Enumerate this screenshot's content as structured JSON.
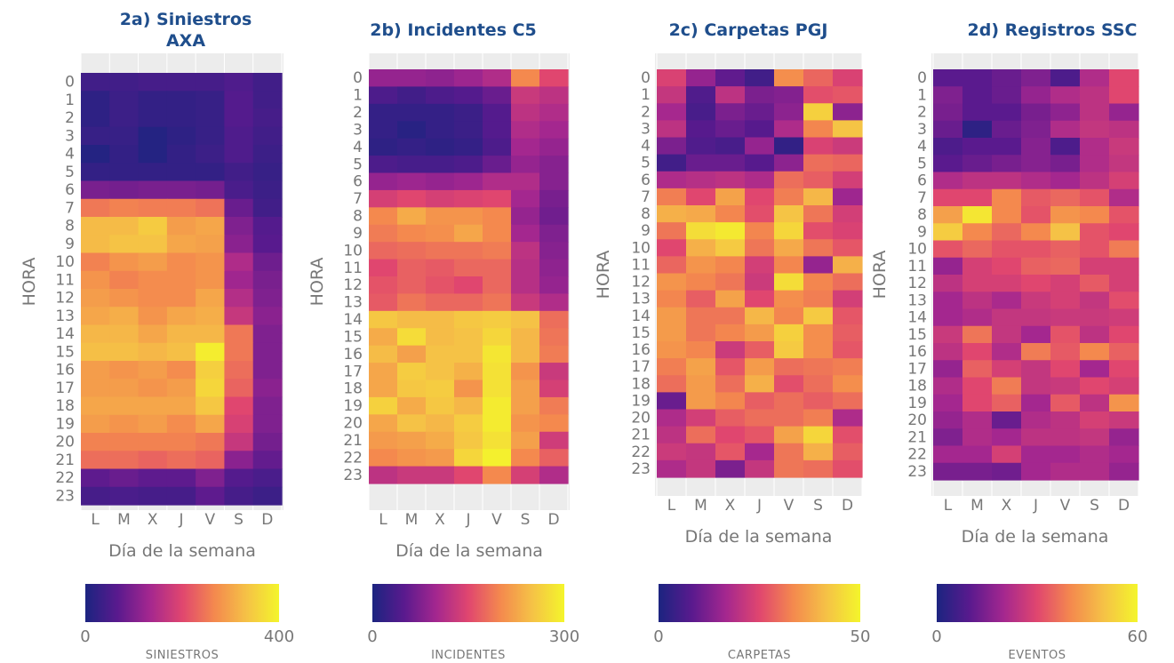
{
  "colors": {
    "title": "#1f4e8c",
    "scale": [
      "#1b2480",
      "#5a1a8e",
      "#a4278f",
      "#e0466f",
      "#f4894e",
      "#f5c246",
      "#f4f52b"
    ],
    "grid_bg": "#ececec",
    "text": "#777777"
  },
  "chart_data": [
    {
      "type": "heatmap",
      "title_lines": [
        "2a) Siniestros",
        "AXA"
      ],
      "xlabel": "Día de la semana",
      "ylabel": "HORA",
      "x": [
        "L",
        "M",
        "X",
        "J",
        "V",
        "S",
        "D"
      ],
      "y": [
        "0",
        "1",
        "2",
        "3",
        "4",
        "5",
        "6",
        "7",
        "8",
        "9",
        "10",
        "11",
        "12",
        "13",
        "14",
        "15",
        "16",
        "17",
        "18",
        "19",
        "20",
        "21",
        "22",
        "23"
      ],
      "legend": {
        "title": "SINIESTROS",
        "min": 0,
        "max": 400,
        "min_label": "0",
        "max_label": "400"
      },
      "values": [
        [
          40,
          40,
          45,
          45,
          45,
          55,
          40
        ],
        [
          20,
          35,
          25,
          25,
          30,
          60,
          40
        ],
        [
          20,
          35,
          25,
          25,
          30,
          60,
          45
        ],
        [
          30,
          30,
          10,
          20,
          30,
          55,
          40
        ],
        [
          10,
          25,
          10,
          25,
          35,
          55,
          35
        ],
        [
          25,
          25,
          25,
          25,
          25,
          40,
          30
        ],
        [
          95,
          90,
          95,
          95,
          90,
          50,
          35
        ],
        [
          250,
          260,
          255,
          255,
          245,
          80,
          40
        ],
        [
          325,
          325,
          345,
          290,
          300,
          100,
          60
        ],
        [
          325,
          335,
          335,
          300,
          295,
          110,
          65
        ],
        [
          260,
          280,
          290,
          270,
          280,
          145,
          85
        ],
        [
          280,
          260,
          270,
          270,
          280,
          130,
          95
        ],
        [
          290,
          280,
          270,
          270,
          300,
          150,
          100
        ],
        [
          300,
          310,
          280,
          300,
          310,
          170,
          110
        ],
        [
          320,
          320,
          300,
          320,
          320,
          250,
          100
        ],
        [
          330,
          330,
          320,
          330,
          390,
          250,
          100
        ],
        [
          290,
          280,
          290,
          270,
          350,
          240,
          100
        ],
        [
          290,
          290,
          280,
          290,
          360,
          230,
          110
        ],
        [
          300,
          300,
          300,
          300,
          340,
          200,
          100
        ],
        [
          290,
          280,
          290,
          270,
          300,
          190,
          100
        ],
        [
          260,
          260,
          260,
          260,
          250,
          170,
          90
        ],
        [
          240,
          240,
          230,
          240,
          230,
          110,
          75
        ],
        [
          70,
          80,
          70,
          70,
          100,
          60,
          50
        ],
        [
          45,
          50,
          45,
          45,
          70,
          45,
          35
        ]
      ]
    },
    {
      "type": "heatmap",
      "title_lines": [
        "2b) Incidentes C5"
      ],
      "xlabel": "Día de la semana",
      "ylabel": "HORA",
      "x": [
        "L",
        "M",
        "X",
        "J",
        "V",
        "S",
        "D"
      ],
      "y": [
        "0",
        "1",
        "2",
        "3",
        "4",
        "5",
        "6",
        "7",
        "8",
        "9",
        "10",
        "11",
        "12",
        "13",
        "14",
        "15",
        "16",
        "17",
        "18",
        "19",
        "20",
        "21",
        "22",
        "23"
      ],
      "legend": {
        "title": "INCIDENTES",
        "min": 0,
        "max": 300,
        "min_label": "0",
        "max_label": "300"
      },
      "values": [
        [
          90,
          90,
          85,
          95,
          110,
          200,
          150
        ],
        [
          40,
          30,
          40,
          45,
          60,
          130,
          120
        ],
        [
          20,
          20,
          20,
          25,
          45,
          120,
          110
        ],
        [
          20,
          10,
          20,
          25,
          45,
          110,
          100
        ],
        [
          15,
          20,
          15,
          20,
          40,
          100,
          90
        ],
        [
          40,
          35,
          35,
          40,
          60,
          90,
          80
        ],
        [
          90,
          95,
          90,
          95,
          110,
          110,
          80
        ],
        [
          140,
          150,
          140,
          145,
          150,
          100,
          70
        ],
        [
          200,
          230,
          210,
          210,
          200,
          90,
          65
        ],
        [
          190,
          200,
          205,
          225,
          200,
          100,
          75
        ],
        [
          175,
          180,
          185,
          185,
          190,
          120,
          80
        ],
        [
          150,
          170,
          165,
          175,
          175,
          115,
          85
        ],
        [
          160,
          170,
          160,
          150,
          175,
          115,
          90
        ],
        [
          165,
          185,
          175,
          175,
          185,
          130,
          110
        ],
        [
          255,
          245,
          245,
          255,
          260,
          250,
          180
        ],
        [
          230,
          275,
          245,
          250,
          270,
          240,
          185
        ],
        [
          245,
          220,
          250,
          250,
          285,
          240,
          190
        ],
        [
          225,
          260,
          250,
          235,
          280,
          210,
          130
        ],
        [
          225,
          255,
          260,
          210,
          280,
          220,
          140
        ],
        [
          265,
          230,
          255,
          240,
          290,
          220,
          190
        ],
        [
          225,
          250,
          240,
          260,
          290,
          210,
          200
        ],
        [
          215,
          220,
          230,
          255,
          280,
          220,
          135
        ],
        [
          200,
          210,
          215,
          270,
          295,
          200,
          170
        ],
        [
          120,
          130,
          130,
          150,
          200,
          140,
          110
        ]
      ]
    },
    {
      "type": "heatmap",
      "title_lines": [
        "2c) Carpetas PGJ"
      ],
      "xlabel": "Día de la semana",
      "ylabel": "HORA",
      "x": [
        "L",
        "M",
        "X",
        "J",
        "V",
        "S",
        "D"
      ],
      "y": [
        "0",
        "1",
        "2",
        "3",
        "4",
        "5",
        "6",
        "7",
        "8",
        "9",
        "10",
        "11",
        "12",
        "13",
        "14",
        "15",
        "16",
        "17",
        "18",
        "19",
        "20",
        "21",
        "22",
        "23"
      ],
      "legend": {
        "title": "CARPETAS",
        "min": 0,
        "max": 50,
        "min_label": "0",
        "max_label": "50"
      },
      "values": [
        [
          24,
          15,
          9,
          5,
          34,
          29,
          24
        ],
        [
          21,
          7,
          20,
          12,
          13,
          26,
          27
        ],
        [
          17,
          6,
          12,
          10,
          14,
          44,
          14
        ],
        [
          20,
          8,
          10,
          8,
          18,
          33,
          42
        ],
        [
          12,
          7,
          6,
          15,
          3,
          24,
          22
        ],
        [
          5,
          10,
          10,
          8,
          14,
          30,
          29
        ],
        [
          18,
          19,
          20,
          18,
          30,
          28,
          23
        ],
        [
          32,
          25,
          37,
          25,
          32,
          40,
          16
        ],
        [
          39,
          38,
          33,
          26,
          42,
          31,
          23
        ],
        [
          31,
          46,
          48,
          33,
          45,
          26,
          24
        ],
        [
          25,
          39,
          43,
          31,
          38,
          31,
          27
        ],
        [
          29,
          35,
          33,
          23,
          33,
          15,
          39
        ],
        [
          35,
          33,
          31,
          22,
          46,
          33,
          30
        ],
        [
          33,
          28,
          37,
          25,
          34,
          32,
          23
        ],
        [
          36,
          31,
          31,
          40,
          33,
          43,
          27
        ],
        [
          36,
          31,
          33,
          36,
          44,
          34,
          28
        ],
        [
          35,
          33,
          22,
          28,
          43,
          34,
          27
        ],
        [
          32,
          37,
          27,
          36,
          30,
          31,
          32
        ],
        [
          30,
          36,
          30,
          39,
          26,
          30,
          34
        ],
        [
          10,
          36,
          33,
          28,
          30,
          28,
          30
        ],
        [
          18,
          23,
          28,
          30,
          30,
          32,
          18
        ],
        [
          20,
          30,
          25,
          27,
          37,
          45,
          26
        ],
        [
          22,
          21,
          27,
          17,
          31,
          39,
          28
        ],
        [
          18,
          21,
          12,
          21,
          31,
          30,
          26
        ]
      ]
    },
    {
      "type": "heatmap",
      "title_lines": [
        "2d) Registros SSC"
      ],
      "xlabel": "Día de la semana",
      "ylabel": "HORA",
      "x": [
        "L",
        "M",
        "X",
        "J",
        "V",
        "S",
        "D"
      ],
      "y": [
        "0",
        "1",
        "2",
        "3",
        "4",
        "5",
        "6",
        "7",
        "8",
        "9",
        "10",
        "11",
        "12",
        "13",
        "14",
        "15",
        "16",
        "17",
        "18",
        "19",
        "20",
        "21",
        "22",
        "23"
      ],
      "legend": {
        "title": "EVENTOS",
        "min": 0,
        "max": 60,
        "min_label": "0",
        "max_label": "60"
      },
      "values": [
        [
          10,
          10,
          12,
          15,
          8,
          22,
          30
        ],
        [
          15,
          10,
          12,
          18,
          22,
          24,
          30
        ],
        [
          14,
          10,
          10,
          14,
          17,
          24,
          18
        ],
        [
          12,
          3,
          12,
          15,
          22,
          25,
          24
        ],
        [
          8,
          10,
          10,
          16,
          8,
          22,
          26
        ],
        [
          10,
          12,
          14,
          16,
          14,
          22,
          25
        ],
        [
          22,
          24,
          24,
          22,
          20,
          24,
          28
        ],
        [
          30,
          30,
          40,
          33,
          35,
          32,
          22
        ],
        [
          44,
          57,
          40,
          32,
          42,
          40,
          32
        ],
        [
          52,
          40,
          35,
          40,
          50,
          32,
          30
        ],
        [
          32,
          35,
          32,
          32,
          34,
          32,
          38
        ],
        [
          18,
          28,
          30,
          34,
          35,
          28,
          28
        ],
        [
          24,
          28,
          28,
          30,
          28,
          33,
          28
        ],
        [
          20,
          24,
          21,
          26,
          28,
          25,
          31
        ],
        [
          20,
          22,
          25,
          25,
          26,
          26,
          27
        ],
        [
          26,
          37,
          25,
          20,
          32,
          24,
          30
        ],
        [
          24,
          30,
          22,
          38,
          33,
          40,
          34
        ],
        [
          18,
          34,
          28,
          25,
          30,
          20,
          30
        ],
        [
          22,
          30,
          38,
          25,
          26,
          30,
          28
        ],
        [
          20,
          30,
          34,
          20,
          33,
          24,
          42
        ],
        [
          18,
          22,
          12,
          22,
          24,
          28,
          26
        ],
        [
          15,
          22,
          20,
          24,
          24,
          25,
          18
        ],
        [
          20,
          20,
          28,
          20,
          20,
          22,
          20
        ],
        [
          14,
          14,
          13,
          20,
          22,
          22,
          18
        ]
      ]
    }
  ]
}
